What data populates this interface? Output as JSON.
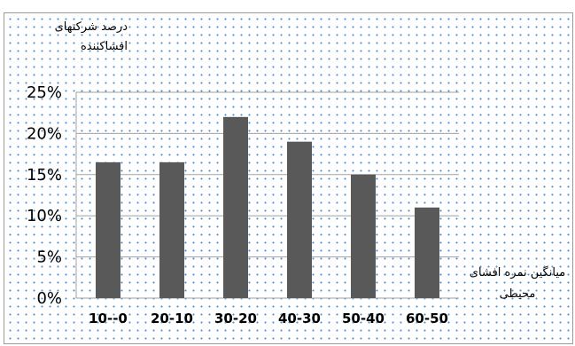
{
  "chart_data": {
    "type": "bar",
    "categories": [
      "10--0",
      "20-10",
      "30-20",
      "40-30",
      "50-40",
      "60-50"
    ],
    "values": [
      16.5,
      16.5,
      22,
      19,
      15,
      11
    ],
    "ylabel": "درصد شرکتهای افشاکننده",
    "ylabel_line1": "درصد شرکتهای",
    "ylabel_line2": "افشاکننده",
    "xlabel": "میانگین نمره افشای محیطی",
    "xlabel_line1": "میانگین نمره افشای",
    "xlabel_line2": "محیطی",
    "ylim": [
      0,
      25
    ],
    "yticks": [
      0,
      5,
      10,
      15,
      20,
      25
    ],
    "ytick_labels": [
      "0%",
      "5%",
      "10%",
      "15%",
      "20%",
      "25%"
    ],
    "grid": true,
    "bar_color": "#595959",
    "grid_color": "#a0a0a0"
  }
}
